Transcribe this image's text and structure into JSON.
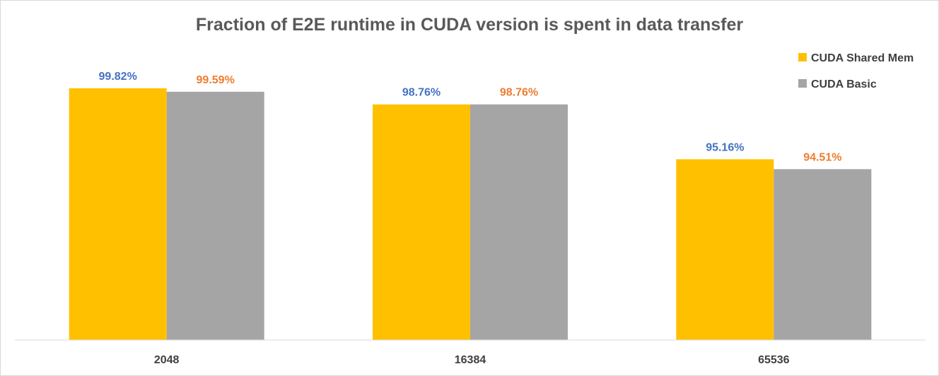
{
  "chart_data": {
    "type": "bar",
    "title": "Fraction of E2E runtime in CUDA version is spent in data transfer",
    "xlabel": "",
    "ylabel": "",
    "categories": [
      "2048",
      "16384",
      "65536"
    ],
    "series": [
      {
        "name": "CUDA Shared Mem",
        "values": [
          99.82,
          98.76,
          95.16
        ],
        "labels": [
          "99.82%",
          "98.76%",
          "95.16%"
        ],
        "color": "#FFC000",
        "label_color": "#4472C4"
      },
      {
        "name": "CUDA Basic",
        "values": [
          99.59,
          98.76,
          94.51
        ],
        "labels": [
          "99.59%",
          "98.76%",
          "94.51%"
        ],
        "color": "#A5A5A5",
        "label_color": "#ED7D31"
      }
    ],
    "ylim": [
      83.3,
      100
    ],
    "grid": false,
    "y_axis_visible": false,
    "legend_position": "top-right"
  }
}
